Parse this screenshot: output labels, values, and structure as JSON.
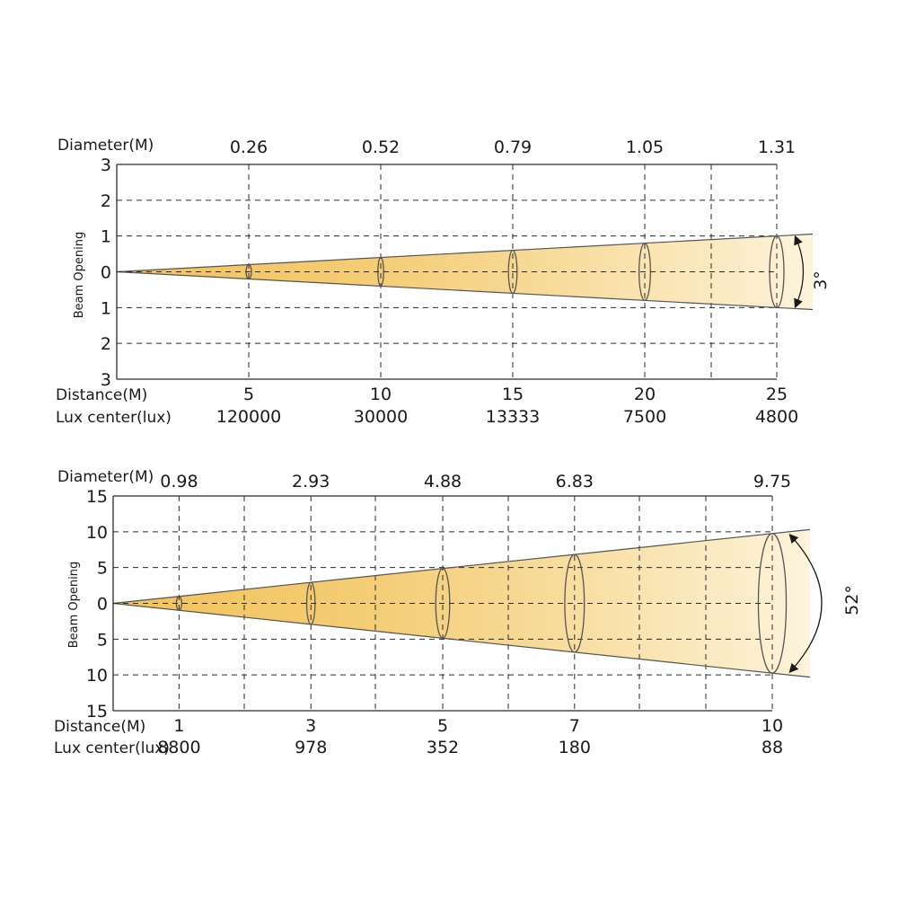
{
  "colors": {
    "beam_warm": "#f2c35a",
    "beam_light": "#fdf4dc",
    "grid": "#2b2b2b",
    "outline": "#555555"
  },
  "diagrams": [
    {
      "diameter_label": "Diameter(M)",
      "distance_label": "Distance(M)",
      "lux_label": "Lux center(lux)",
      "vertical_label": "Beam Opening",
      "angle_label": "3°",
      "y_ticks": [
        "3",
        "2",
        "1",
        "0",
        "1",
        "2",
        "3"
      ],
      "y_range": [
        -3,
        3
      ],
      "x_range": [
        0,
        25
      ],
      "half_opening_at_max": 1,
      "points": [
        {
          "distance": "5",
          "diameter": "0.26",
          "lux": "120000",
          "d": 5,
          "dia": 0.26
        },
        {
          "distance": "10",
          "diameter": "0.52",
          "lux": "30000",
          "d": 10,
          "dia": 0.52
        },
        {
          "distance": "15",
          "diameter": "0.79",
          "lux": "13333",
          "d": 15,
          "dia": 0.79
        },
        {
          "distance": "20",
          "diameter": "1.05",
          "lux": "7500",
          "d": 20,
          "dia": 1.05
        },
        {
          "distance": "25",
          "diameter": "1.31",
          "lux": "4800",
          "d": 25,
          "dia": 1.31
        }
      ]
    },
    {
      "diameter_label": "Diameter(M)",
      "distance_label": "Distance(M)",
      "lux_label": "Lux center(lux)",
      "vertical_label": "Beam Opening",
      "angle_label": "52°",
      "y_ticks": [
        "15",
        "10",
        "5",
        "0",
        "5",
        "10",
        "15"
      ],
      "y_range": [
        -15,
        15
      ],
      "x_range": [
        0,
        10
      ],
      "half_opening_at_max": 9.75,
      "points": [
        {
          "distance": "1",
          "diameter": "0.98",
          "lux": "8800",
          "d": 1,
          "dia": 0.98
        },
        {
          "distance": "3",
          "diameter": "2.93",
          "lux": "978",
          "d": 3,
          "dia": 2.93
        },
        {
          "distance": "5",
          "diameter": "4.88",
          "lux": "352",
          "d": 5,
          "dia": 4.88
        },
        {
          "distance": "7",
          "diameter": "6.83",
          "lux": "180",
          "d": 7,
          "dia": 6.83
        },
        {
          "distance": "10",
          "diameter": "9.75",
          "lux": "88",
          "d": 10,
          "dia": 9.75
        }
      ]
    }
  ]
}
